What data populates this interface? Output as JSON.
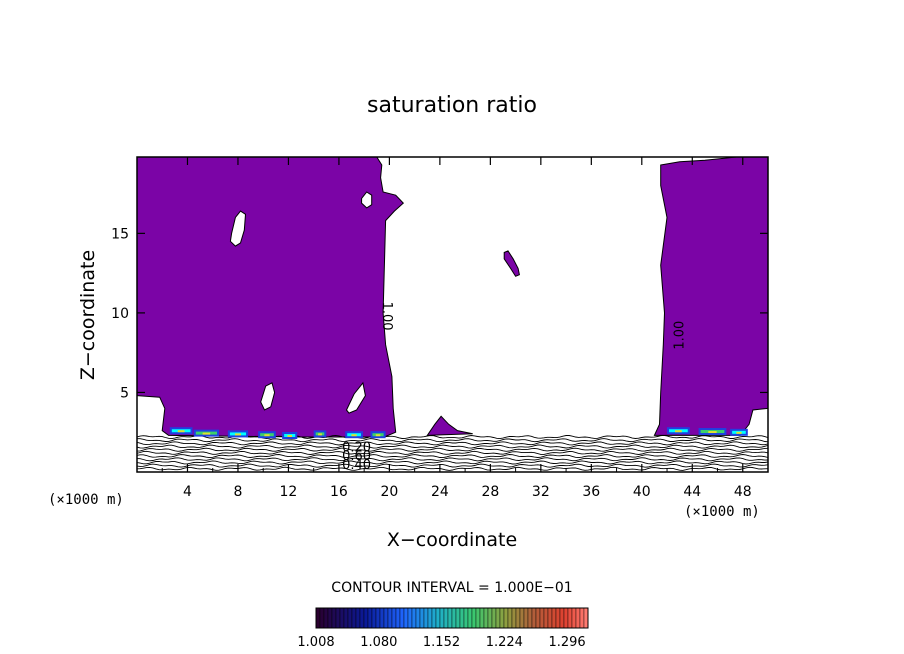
{
  "chart_data": {
    "type": "heatmap",
    "title": "saturation ratio",
    "xlabel": "X−coordinate",
    "ylabel": "Z−coordinate",
    "x_unit_label": "(×1000 m)",
    "z_unit_label": "(×1000 m)",
    "xlim": [
      0,
      50
    ],
    "ylim": [
      0,
      19.8
    ],
    "x_ticks": [
      4,
      8,
      12,
      16,
      20,
      24,
      28,
      32,
      36,
      40,
      44,
      48
    ],
    "y_ticks": [
      5,
      10,
      15
    ],
    "contour_interval_text": "CONTOUR INTERVAL = 1.000E−01",
    "contour_interval": 0.1,
    "colorbar": {
      "min": 1.008,
      "max": 1.32,
      "tick_values": [
        1.008,
        1.08,
        1.152,
        1.224,
        1.296
      ],
      "tick_labels": [
        "1.008",
        "1.080",
        "1.152",
        "1.224",
        "1.296"
      ]
    },
    "colors": {
      "fill_supersaturated": "#7b04a6",
      "background": "#ffffff",
      "contour_line": "#000000"
    },
    "contour_labels": [
      {
        "text": "1.00",
        "x": 19.8,
        "z": 9.8,
        "rotation": 90
      },
      {
        "text": "1.00",
        "x": 43.0,
        "z": 8.6,
        "rotation": -90
      },
      {
        "text": "0.20",
        "x": 17.4,
        "z": 1.55,
        "rotation": 0
      },
      {
        "text": "0.60",
        "x": 17.4,
        "z": 1.0,
        "rotation": 0
      },
      {
        "text": "0.40",
        "x": 17.4,
        "z": 0.45,
        "rotation": 0
      }
    ],
    "regions": [
      {
        "name": "left-supersaturated-region",
        "level": 1.0,
        "boundary": [
          [
            0,
            19.8
          ],
          [
            19.0,
            19.8
          ],
          [
            19.4,
            19.3
          ],
          [
            19.3,
            18.5
          ],
          [
            19.5,
            17.6
          ],
          [
            20.5,
            17.4
          ],
          [
            21.1,
            16.9
          ],
          [
            20.4,
            16.4
          ],
          [
            19.7,
            15.8
          ],
          [
            19.6,
            13.0
          ],
          [
            19.5,
            10.0
          ],
          [
            19.7,
            8.0
          ],
          [
            20.2,
            6.0
          ],
          [
            20.3,
            4.0
          ],
          [
            20.5,
            2.5
          ],
          [
            19.6,
            2.2
          ],
          [
            16.0,
            2.2
          ],
          [
            13.0,
            2.2
          ],
          [
            2.5,
            2.3
          ],
          [
            2.0,
            2.6
          ],
          [
            2.2,
            4.0
          ],
          [
            1.8,
            4.7
          ],
          [
            0,
            4.8
          ]
        ]
      },
      {
        "name": "right-supersaturated-region",
        "level": 1.0,
        "boundary": [
          [
            41.5,
            19.3
          ],
          [
            43.0,
            19.5
          ],
          [
            45.0,
            19.6
          ],
          [
            47.5,
            19.8
          ],
          [
            50,
            19.8
          ],
          [
            50,
            4.0
          ],
          [
            48.8,
            3.9
          ],
          [
            48.5,
            3.0
          ],
          [
            47.8,
            2.3
          ],
          [
            41.0,
            2.3
          ],
          [
            41.4,
            3.0
          ],
          [
            41.5,
            5.0
          ],
          [
            41.7,
            8.0
          ],
          [
            41.8,
            10.0
          ],
          [
            41.5,
            13.0
          ],
          [
            42.0,
            16.0
          ],
          [
            41.5,
            18.0
          ]
        ]
      },
      {
        "name": "middle-small-region",
        "level": 1.0,
        "boundary": [
          [
            23.0,
            2.3
          ],
          [
            23.6,
            3.0
          ],
          [
            24.1,
            3.5
          ],
          [
            24.7,
            3.0
          ],
          [
            25.4,
            2.6
          ],
          [
            26.6,
            2.4
          ],
          [
            23.0,
            2.3
          ]
        ]
      },
      {
        "name": "small-elongated-patch",
        "level": 1.0,
        "boundary": [
          [
            29.1,
            13.8
          ],
          [
            29.4,
            13.9
          ],
          [
            29.8,
            13.4
          ],
          [
            30.2,
            12.8
          ],
          [
            30.3,
            12.4
          ],
          [
            30.0,
            12.3
          ],
          [
            29.6,
            12.8
          ],
          [
            29.1,
            13.4
          ]
        ]
      }
    ],
    "holes": [
      {
        "name": "hole-upper-left",
        "boundary": [
          [
            7.5,
            15.0
          ],
          [
            7.8,
            16.0
          ],
          [
            8.2,
            16.4
          ],
          [
            8.6,
            16.2
          ],
          [
            8.5,
            15.2
          ],
          [
            8.2,
            14.4
          ],
          [
            7.8,
            14.2
          ],
          [
            7.4,
            14.5
          ]
        ]
      },
      {
        "name": "hole-top-small",
        "boundary": [
          [
            17.8,
            17.2
          ],
          [
            18.2,
            17.6
          ],
          [
            18.6,
            17.4
          ],
          [
            18.6,
            16.8
          ],
          [
            18.2,
            16.6
          ],
          [
            17.8,
            16.9
          ]
        ]
      },
      {
        "name": "hole-mid-left",
        "boundary": [
          [
            9.8,
            4.4
          ],
          [
            10.2,
            5.4
          ],
          [
            10.7,
            5.6
          ],
          [
            10.9,
            5.0
          ],
          [
            10.6,
            4.1
          ],
          [
            10.1,
            3.9
          ]
        ]
      },
      {
        "name": "hole-mid-right",
        "boundary": [
          [
            16.6,
            3.9
          ],
          [
            17.2,
            4.9
          ],
          [
            17.9,
            5.6
          ],
          [
            18.1,
            4.8
          ],
          [
            17.4,
            3.9
          ],
          [
            16.8,
            3.7
          ]
        ]
      }
    ],
    "surface_band": {
      "x_start": 0,
      "x_end": 50,
      "top_z": 2.2,
      "line_count": 11
    },
    "hot_spots": [
      {
        "x": 2.6,
        "z": 2.5,
        "len": 1.8
      },
      {
        "x": 4.5,
        "z": 2.35,
        "len": 2.0
      },
      {
        "x": 7.2,
        "z": 2.3,
        "len": 1.6
      },
      {
        "x": 9.6,
        "z": 2.25,
        "len": 1.4
      },
      {
        "x": 11.5,
        "z": 2.2,
        "len": 1.2
      },
      {
        "x": 14.0,
        "z": 2.3,
        "len": 1.0
      },
      {
        "x": 16.5,
        "z": 2.25,
        "len": 1.4
      },
      {
        "x": 18.5,
        "z": 2.25,
        "len": 1.2
      },
      {
        "x": 42.0,
        "z": 2.5,
        "len": 1.8
      },
      {
        "x": 44.5,
        "z": 2.45,
        "len": 2.2
      },
      {
        "x": 47.0,
        "z": 2.4,
        "len": 1.4
      }
    ]
  }
}
